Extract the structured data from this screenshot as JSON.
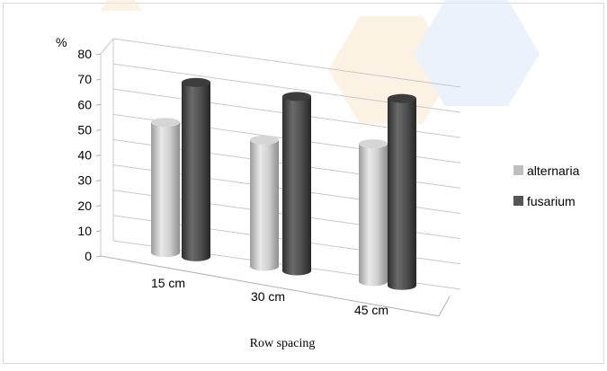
{
  "chart_data": {
    "type": "bar",
    "title": "",
    "unit_label": "%",
    "xlabel": "Row spacing",
    "ylabel": "",
    "categories": [
      "15 cm",
      "30 cm",
      "45 cm"
    ],
    "series": [
      {
        "name": "alternaria",
        "values": [
          51.5,
          50,
          54.5
        ],
        "color": "#bfbfbf"
      },
      {
        "name": "fusarium",
        "values": [
          69,
          69,
          74
        ],
        "color": "#555555"
      }
    ],
    "yticks": [
      0,
      10,
      20,
      30,
      40,
      50,
      60,
      70,
      80
    ],
    "ylim": [
      0,
      80
    ],
    "grid": true,
    "legend_position": "right",
    "style": "3d-cylinder"
  }
}
